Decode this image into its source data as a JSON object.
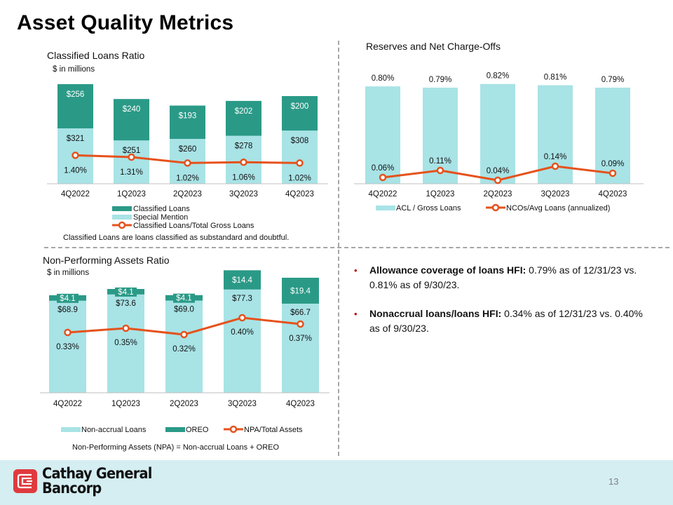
{
  "page": {
    "title": "Asset Quality Metrics",
    "page_number": "13"
  },
  "colors": {
    "dark_teal": "#2a9a87",
    "light_teal": "#a8e3e6",
    "orange": "#e5521c",
    "axis_gray": "#bfbfbf",
    "bullet_red": "#c00000",
    "footer_bg": "#d4eef2",
    "logo_red": "#e03a3e"
  },
  "footer": {
    "brand_line1": "Cathay General",
    "brand_line2": "Bancorp"
  },
  "bullets": [
    {
      "bold": "Allowance coverage of loans HFI:",
      "text": " 0.79% as of 12/31/23 vs. 0.81% as of 9/30/23."
    },
    {
      "bold": "Nonaccrual loans/loans HFI:",
      "text": " 0.34% as of 12/31/23 vs. 0.40% as of 9/30/23."
    }
  ],
  "chart_data": [
    {
      "id": "classified",
      "type": "bar",
      "stacked": true,
      "title": "Classified Loans Ratio",
      "subtitle": "$ in millions",
      "categories": [
        "4Q2022",
        "1Q2023",
        "2Q2023",
        "3Q2023",
        "4Q2023"
      ],
      "series": [
        {
          "name": "Special Mention",
          "kind": "bar",
          "values": [
            321,
            251,
            260,
            278,
            308
          ],
          "labels": [
            "$321",
            "$251",
            "$260",
            "$278",
            "$308"
          ]
        },
        {
          "name": "Classified Loans",
          "kind": "bar",
          "values": [
            256,
            240,
            193,
            202,
            200
          ],
          "labels": [
            "$256",
            "$240",
            "$193",
            "$202",
            "$200"
          ]
        },
        {
          "name": "Classified Loans/Total Gross Loans",
          "kind": "line",
          "values": [
            1.4,
            1.31,
            1.02,
            1.06,
            1.02
          ],
          "labels": [
            "1.40%",
            "1.31%",
            "1.02%",
            "1.06%",
            "1.02%"
          ]
        }
      ],
      "legend": [
        "Classified Loans",
        "Special Mention",
        "Classified Loans/Total Gross Loans"
      ],
      "legend_position": "bottom",
      "note": "Classified Loans are loans classified as substandard and doubtful.",
      "ylim": [
        0,
        1065
      ],
      "y2lim": [
        0,
        3.3
      ],
      "grid": false
    },
    {
      "id": "reserves",
      "type": "bar",
      "title": "Reserves and Net Charge-Offs",
      "categories": [
        "4Q2022",
        "1Q2023",
        "2Q2023",
        "3Q2023",
        "4Q2023"
      ],
      "series": [
        {
          "name": "ACL / Gross Loans",
          "kind": "bar",
          "values": [
            0.8,
            0.79,
            0.82,
            0.81,
            0.79
          ],
          "labels": [
            "0.80%",
            "0.79%",
            "0.82%",
            "0.81%",
            "0.79%"
          ]
        },
        {
          "name": "NCOs/Avg Loans (annualized)",
          "kind": "line",
          "values": [
            0.06,
            0.11,
            0.04,
            0.14,
            0.09
          ],
          "labels": [
            "0.06%",
            "0.11%",
            "0.04%",
            "0.14%",
            "0.09%"
          ]
        }
      ],
      "legend": [
        "ACL / Gross Loans",
        "NCOs/Avg Loans (annualized)"
      ],
      "legend_position": "bottom",
      "ylim": [
        0,
        0.87
      ],
      "y2lim": [
        0,
        0.75
      ],
      "grid": false
    },
    {
      "id": "npa",
      "type": "bar",
      "stacked": true,
      "title": "Non-Performing Assets Ratio",
      "subtitle": "$ in millions",
      "categories": [
        "4Q2022",
        "1Q2023",
        "2Q2023",
        "3Q2023",
        "4Q2023"
      ],
      "series": [
        {
          "name": "Non-accrual Loans",
          "kind": "bar",
          "values": [
            68.9,
            73.6,
            69.0,
            77.3,
            66.7
          ],
          "labels": [
            "$68.9",
            "$73.6",
            "$69.0",
            "$77.3",
            "$66.7"
          ]
        },
        {
          "name": "OREO",
          "kind": "bar",
          "values": [
            4.1,
            4.1,
            4.1,
            14.4,
            19.4
          ],
          "labels": [
            "$4.1",
            "$4.1",
            "$4.1",
            "$14.4",
            "$19.4"
          ]
        },
        {
          "name": "NPA/Total Assets",
          "kind": "line",
          "values": [
            0.33,
            0.35,
            0.32,
            0.4,
            0.37
          ],
          "labels": [
            "0.33%",
            "0.35%",
            "0.32%",
            "0.40%",
            "0.37%"
          ]
        }
      ],
      "legend": [
        "Non-accrual Loans",
        "OREO",
        "NPA/Total Assets"
      ],
      "legend_position": "bottom",
      "note": "Non-Performing Assets (NPA) = Non-accrual Loans + OREO",
      "ylim": [
        0,
        90
      ],
      "y2lim": [
        0,
        1.9
      ],
      "grid": false
    }
  ]
}
